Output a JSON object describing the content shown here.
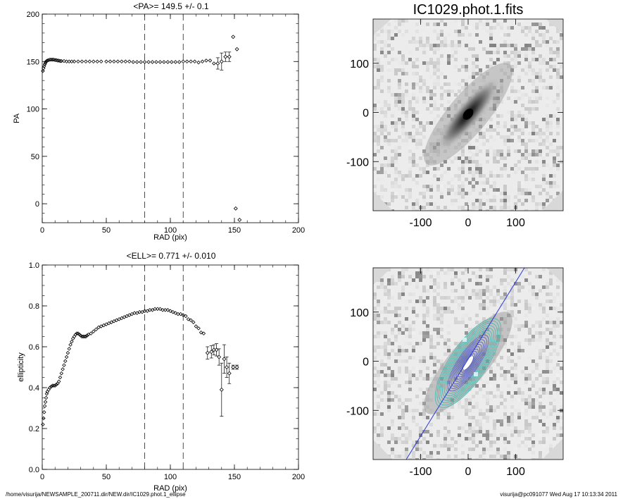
{
  "chart_data": [
    {
      "type": "scatter",
      "title": "<PA>= 149.5 +/-   0.1",
      "xlabel": "RAD (pix)",
      "ylabel": "PA",
      "xlim": [
        0,
        200
      ],
      "ylim": [
        -20,
        200
      ],
      "xticks": [
        0,
        50,
        100,
        150,
        200
      ],
      "yticks": [
        0,
        50,
        100,
        150,
        200
      ],
      "vlines": [
        80,
        110
      ],
      "points": [
        [
          0.5,
          140
        ],
        [
          1,
          143
        ],
        [
          1.5,
          145
        ],
        [
          2,
          147
        ],
        [
          2.5,
          148.5
        ],
        [
          3,
          150
        ],
        [
          3.5,
          150.5
        ],
        [
          4,
          151
        ],
        [
          5,
          151.5
        ],
        [
          6,
          152
        ],
        [
          7,
          152
        ],
        [
          8,
          152
        ],
        [
          9,
          152
        ],
        [
          10,
          151.5
        ],
        [
          11,
          151.5
        ],
        [
          12,
          151
        ],
        [
          13,
          151
        ],
        [
          14,
          150.5
        ],
        [
          15,
          150.5
        ],
        [
          17,
          150.5
        ],
        [
          19,
          150
        ],
        [
          21,
          150
        ],
        [
          23,
          150
        ],
        [
          25,
          150
        ],
        [
          28,
          150
        ],
        [
          31,
          150
        ],
        [
          34,
          150
        ],
        [
          37,
          150
        ],
        [
          40,
          150
        ],
        [
          43,
          150
        ],
        [
          46,
          150
        ],
        [
          50,
          150
        ],
        [
          53,
          150
        ],
        [
          56,
          150
        ],
        [
          59,
          150
        ],
        [
          62,
          150
        ],
        [
          65,
          150
        ],
        [
          68,
          150
        ],
        [
          71,
          149.5
        ],
        [
          74,
          149.5
        ],
        [
          77,
          149.5
        ],
        [
          80,
          149.5
        ],
        [
          83,
          149.5
        ],
        [
          86,
          149.5
        ],
        [
          89,
          149.5
        ],
        [
          92,
          149.5
        ],
        [
          95,
          149.5
        ],
        [
          98,
          149.5
        ],
        [
          101,
          149.5
        ],
        [
          104,
          149.5
        ],
        [
          107,
          149.5
        ],
        [
          110,
          150
        ],
        [
          113,
          150
        ],
        [
          116,
          150
        ],
        [
          119,
          150
        ],
        [
          122,
          149
        ],
        [
          125,
          150
        ],
        [
          128,
          151
        ],
        [
          131,
          151
        ],
        [
          134,
          148
        ]
      ],
      "errpoints": [
        {
          "x": 137,
          "y": 148,
          "err": 6
        },
        {
          "x": 140,
          "y": 150,
          "err": 9
        },
        {
          "x": 143,
          "y": 155,
          "err": 5
        },
        {
          "x": 146,
          "y": 155,
          "err": 5
        },
        {
          "x": 149,
          "y": 176,
          "err": 0
        },
        {
          "x": 152,
          "y": 163,
          "err": 0
        },
        {
          "x": 151,
          "y": -5,
          "err": 0
        },
        {
          "x": 154,
          "y": -17,
          "err": 0
        }
      ]
    },
    {
      "type": "scatter",
      "title": "<ELL>= 0.771 +/-  0.010",
      "xlabel": "RAD (pix)",
      "ylabel": "ellipticity",
      "xlim": [
        0,
        200
      ],
      "ylim": [
        0.0,
        1.0
      ],
      "xticks": [
        0,
        50,
        100,
        150,
        200
      ],
      "yticks": [
        "0.0",
        "0.2",
        "0.4",
        "0.6",
        "0.8",
        "1.0"
      ],
      "vlines": [
        80,
        110
      ],
      "points": [
        [
          0.5,
          0.22
        ],
        [
          1,
          0.25
        ],
        [
          1.5,
          0.28
        ],
        [
          2,
          0.31
        ],
        [
          2.5,
          0.33
        ],
        [
          3,
          0.35
        ],
        [
          3.5,
          0.37
        ],
        [
          4,
          0.38
        ],
        [
          5,
          0.39
        ],
        [
          6,
          0.4
        ],
        [
          7,
          0.405
        ],
        [
          8,
          0.41
        ],
        [
          9,
          0.41
        ],
        [
          10,
          0.41
        ],
        [
          11,
          0.415
        ],
        [
          12,
          0.42
        ],
        [
          13,
          0.43
        ],
        [
          14,
          0.45
        ],
        [
          15,
          0.47
        ],
        [
          16,
          0.49
        ],
        [
          17,
          0.51
        ],
        [
          18,
          0.53
        ],
        [
          19,
          0.55
        ],
        [
          20,
          0.57
        ],
        [
          21,
          0.59
        ],
        [
          22,
          0.61
        ],
        [
          23,
          0.625
        ],
        [
          24,
          0.64
        ],
        [
          25,
          0.65
        ],
        [
          26,
          0.66
        ],
        [
          27,
          0.665
        ],
        [
          28,
          0.665
        ],
        [
          29,
          0.66
        ],
        [
          30,
          0.655
        ],
        [
          31,
          0.65
        ],
        [
          32,
          0.65
        ],
        [
          33,
          0.65
        ],
        [
          34,
          0.65
        ],
        [
          35,
          0.655
        ],
        [
          36,
          0.66
        ],
        [
          38,
          0.665
        ],
        [
          40,
          0.675
        ],
        [
          42,
          0.685
        ],
        [
          44,
          0.695
        ],
        [
          46,
          0.7
        ],
        [
          48,
          0.705
        ],
        [
          50,
          0.71
        ],
        [
          52,
          0.715
        ],
        [
          54,
          0.72
        ],
        [
          56,
          0.725
        ],
        [
          58,
          0.73
        ],
        [
          60,
          0.735
        ],
        [
          62,
          0.74
        ],
        [
          64,
          0.745
        ],
        [
          66,
          0.75
        ],
        [
          68,
          0.755
        ],
        [
          70,
          0.76
        ],
        [
          72,
          0.765
        ],
        [
          74,
          0.765
        ],
        [
          76,
          0.77
        ],
        [
          78,
          0.77
        ],
        [
          80,
          0.775
        ],
        [
          82,
          0.775
        ],
        [
          84,
          0.78
        ],
        [
          86,
          0.78
        ],
        [
          88,
          0.785
        ],
        [
          90,
          0.785
        ],
        [
          92,
          0.785
        ],
        [
          94,
          0.78
        ],
        [
          96,
          0.78
        ],
        [
          98,
          0.78
        ],
        [
          100,
          0.775
        ],
        [
          102,
          0.77
        ],
        [
          104,
          0.765
        ],
        [
          106,
          0.76
        ],
        [
          108,
          0.76
        ],
        [
          110,
          0.755
        ],
        [
          112,
          0.75
        ],
        [
          114,
          0.735
        ],
        [
          116,
          0.73
        ],
        [
          118,
          0.72
        ],
        [
          120,
          0.7
        ],
        [
          122,
          0.69
        ],
        [
          124,
          0.67
        ],
        [
          126,
          0.665
        ]
      ],
      "errpoints": [
        {
          "x": 129,
          "y": 0.57,
          "err": 0.03
        },
        {
          "x": 132,
          "y": 0.575,
          "err": 0.03
        },
        {
          "x": 134,
          "y": 0.585,
          "err": 0.025
        },
        {
          "x": 136,
          "y": 0.585,
          "err": 0.03
        },
        {
          "x": 138,
          "y": 0.55,
          "err": 0.04
        },
        {
          "x": 140,
          "y": 0.39,
          "err": 0.13
        },
        {
          "x": 142,
          "y": 0.54,
          "err": 0.07
        },
        {
          "x": 144,
          "y": 0.5,
          "err": 0.05
        },
        {
          "x": 146,
          "y": 0.47,
          "err": 0.05
        },
        {
          "x": 149,
          "y": 0.5,
          "err": 0.01
        },
        {
          "x": 152,
          "y": 0.5,
          "err": 0.01
        }
      ]
    },
    {
      "type": "heatmap",
      "title": "IC1029.phot.1.fits",
      "xlim": [
        -200,
        200
      ],
      "ylim": [
        -200,
        190
      ],
      "xticks": [
        "-100",
        "0",
        "100"
      ],
      "yticks": [
        "100",
        "0",
        "-100"
      ],
      "galaxy_pa_deg": 149.5,
      "galaxy_ellipticity": 0.771,
      "colormap": "grayscale inverted"
    },
    {
      "type": "heatmap",
      "title": "",
      "xlim": [
        -200,
        200
      ],
      "ylim": [
        -200,
        190
      ],
      "xticks": [
        "-100",
        "0",
        "100"
      ],
      "yticks": [
        "100",
        "0",
        "-100"
      ],
      "overlay": "fitted ellipse contours and major-axis line",
      "ellipse_colors": [
        "#4fb8b0",
        "#5a63b8"
      ],
      "axis_line_color": "#2a3ad8"
    }
  ],
  "footer": {
    "left": "/home/visurija/NEWSAMPLE_200711.dir/NEW.dir/IC1029.phot.1_ellipse",
    "right": "visurija@pc091077  Wed Aug 17 10:13:34 2011"
  }
}
